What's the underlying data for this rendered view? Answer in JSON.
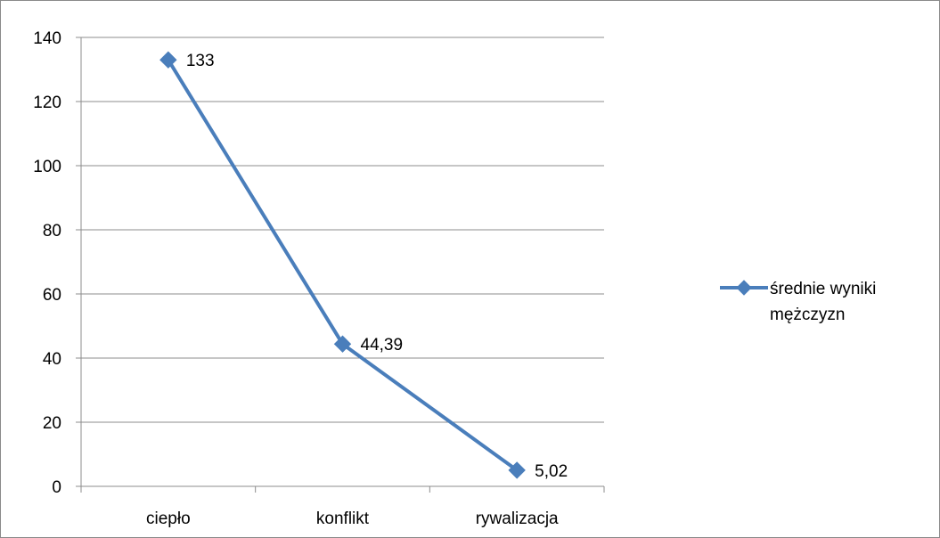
{
  "chart_data": {
    "type": "line",
    "title": "",
    "xlabel": "",
    "ylabel": "",
    "categories": [
      "ciepło",
      "konflikt",
      "rywalizacja"
    ],
    "series": [
      {
        "name": "średnie wyniki mężczyzn",
        "values": [
          133,
          44.39,
          5.02
        ],
        "data_labels": [
          "133",
          "44,39",
          "5,02"
        ],
        "color": "#4a7ebb",
        "marker": "diamond"
      }
    ],
    "ylim": [
      0,
      140
    ],
    "yticks": [
      0,
      20,
      40,
      60,
      80,
      100,
      120,
      140
    ],
    "grid": "horizontal",
    "legend_position": "right"
  }
}
